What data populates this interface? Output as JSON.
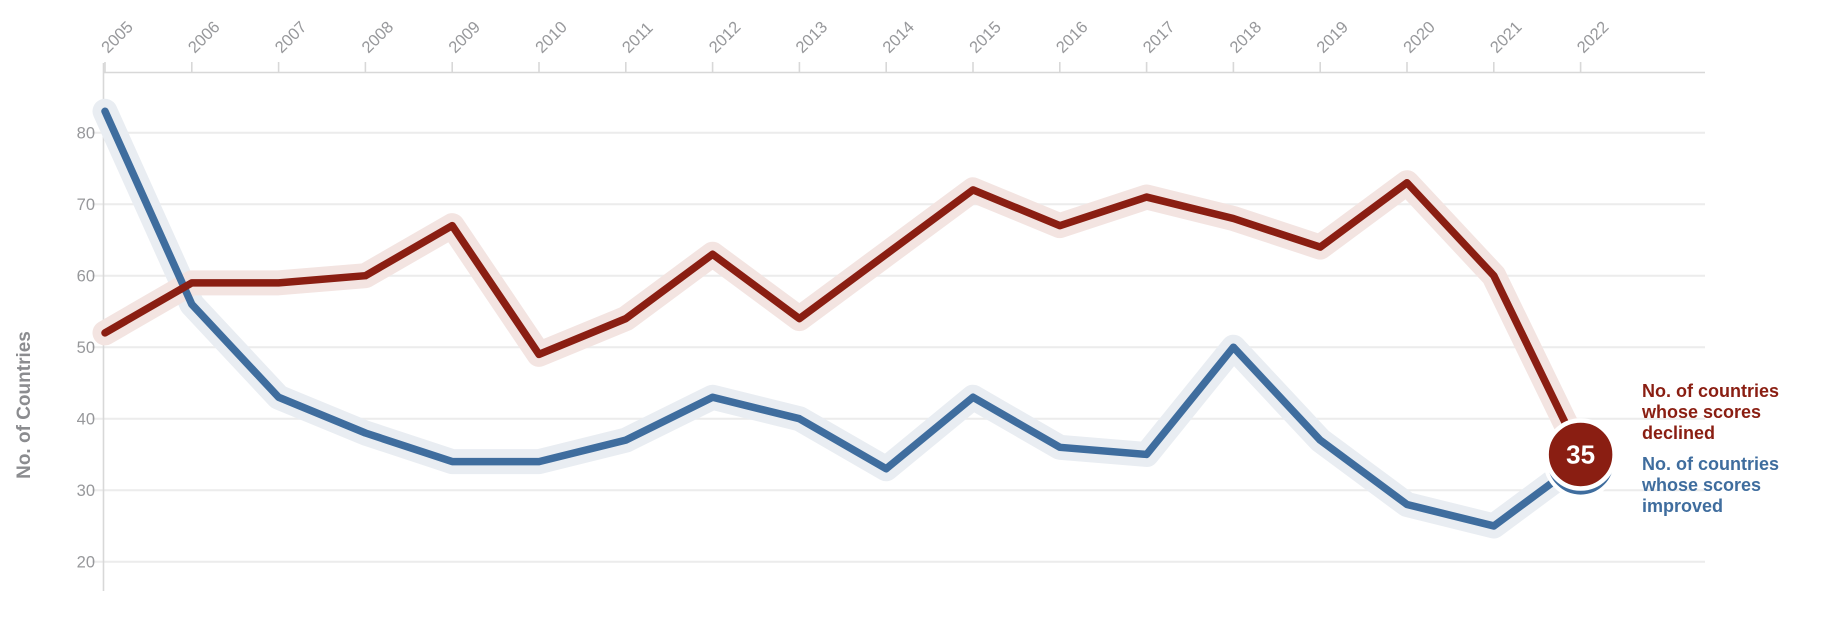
{
  "chart_data": {
    "type": "line",
    "title": "",
    "xlabel": "",
    "ylabel": "No. of Countries",
    "x": [
      2005,
      2006,
      2007,
      2008,
      2009,
      2010,
      2011,
      2012,
      2013,
      2014,
      2015,
      2016,
      2017,
      2018,
      2019,
      2020,
      2021,
      2022
    ],
    "yticks": [
      20,
      30,
      40,
      50,
      60,
      70,
      80
    ],
    "ylim": [
      15,
      88
    ],
    "grid": "horizontal-only",
    "legend_position": "right-of-line-ends",
    "series": [
      {
        "name": "No. of countries whose scores declined",
        "color": "#8A1E12",
        "halo_color": "#F3E4E1",
        "values": [
          52,
          59,
          59,
          60,
          67,
          49,
          54,
          63,
          54,
          63,
          72,
          67,
          71,
          68,
          64,
          73,
          60,
          35
        ],
        "end_marker": true,
        "end_marker_label": "35"
      },
      {
        "name": "No. of countries whose scores improved",
        "color": "#3F6D9E",
        "halo_color": "#E9EDF2",
        "values": [
          83,
          56,
          43,
          38,
          34,
          34,
          37,
          43,
          40,
          33,
          43,
          36,
          35,
          50,
          37,
          28,
          25,
          34
        ],
        "end_marker": true,
        "end_marker_label": ""
      }
    ]
  },
  "axes": {
    "y_title": "No. of Countries",
    "x_tick_labels": [
      "2005",
      "2006",
      "2007",
      "2008",
      "2009",
      "2010",
      "2011",
      "2012",
      "2013",
      "2014",
      "2015",
      "2016",
      "2017",
      "2018",
      "2019",
      "2020",
      "2021",
      "2022"
    ],
    "y_tick_labels": [
      "20",
      "30",
      "40",
      "50",
      "60",
      "70",
      "80"
    ]
  },
  "badge": {
    "label": "35",
    "color": "#8A1E12"
  },
  "legend": {
    "declined": {
      "lines": [
        "No. of countries",
        "whose scores",
        "declined"
      ],
      "color": "#8A1E12"
    },
    "improved": {
      "lines": [
        "No. of countries",
        "whose scores",
        "improved"
      ],
      "color": "#3F6D9E"
    }
  },
  "colors": {
    "background": "#FFFFFF",
    "gridline": "#ECECEC",
    "axis_line": "#D8D8D8",
    "tick_text": "#97989B",
    "y_title_text": "#8B8C8F",
    "declined_line": "#8A1E12",
    "improved_line": "#3F6D9E",
    "declined_halo": "#F3E4E1",
    "improved_halo": "#E9EDF2",
    "badge_ring": "#FFFFFF",
    "badge_text": "#FFFFFF"
  }
}
